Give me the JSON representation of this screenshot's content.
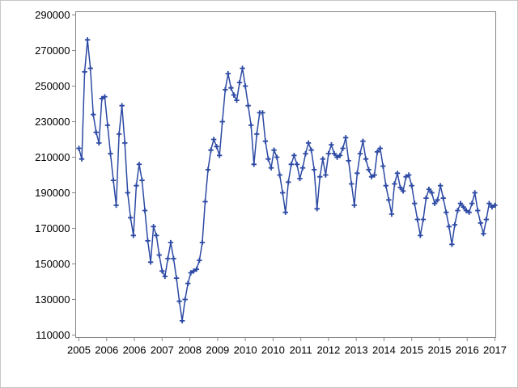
{
  "figure": {
    "background": "#ffffff",
    "border_color": "#c6c6c6",
    "frame_color": "#868686",
    "tick_color": "#8a8a8a",
    "label_color": "#000000"
  },
  "chart_data": {
    "type": "line",
    "title": "",
    "xlabel": "",
    "ylabel": "",
    "grid": false,
    "legend": "none",
    "marker": "plus",
    "line_color": "#2c49a4",
    "ylim": [
      110000,
      290000
    ],
    "y_tick_values": [
      290000,
      270000,
      250000,
      230000,
      210000,
      190000,
      170000,
      150000,
      130000,
      110000
    ],
    "y_tick_labels": [
      "290000",
      "270000",
      "250000",
      "230000",
      "210000",
      "190000",
      "170000",
      "150000",
      "130000",
      "110000"
    ],
    "x_tick_labels": [
      "2005",
      "2006",
      "2006",
      "2007",
      "2008",
      "2009",
      "2010",
      "2010",
      "2011",
      "2012",
      "2013",
      "2014",
      "2015",
      "2015",
      "2016",
      "2017"
    ],
    "x_start_label": "2005",
    "x_end_label": "2017",
    "frequency": "monthly",
    "series": [
      {
        "name": "series1",
        "values": [
          215000,
          209000,
          258000,
          276000,
          260000,
          234000,
          224000,
          218000,
          243000,
          244000,
          228000,
          212000,
          197000,
          183000,
          223000,
          239000,
          218000,
          190000,
          176000,
          166000,
          194000,
          206000,
          197000,
          180000,
          163000,
          151000,
          171000,
          166000,
          155000,
          146000,
          143000,
          153000,
          162000,
          153000,
          142000,
          129000,
          118000,
          130000,
          139000,
          145000,
          146000,
          147000,
          152000,
          162000,
          185000,
          203000,
          214000,
          220000,
          216000,
          211000,
          230000,
          248000,
          257000,
          249000,
          245000,
          242000,
          252000,
          260000,
          250000,
          239000,
          228000,
          206000,
          223000,
          235000,
          235000,
          219000,
          209000,
          204000,
          214000,
          210000,
          200000,
          190000,
          179000,
          196000,
          206000,
          211000,
          206000,
          198000,
          204000,
          212000,
          218000,
          214000,
          203000,
          181000,
          199000,
          209000,
          200000,
          212000,
          217000,
          212000,
          210000,
          211000,
          215000,
          221000,
          208000,
          195000,
          183000,
          201000,
          212000,
          219000,
          209000,
          203000,
          199000,
          200000,
          213000,
          215000,
          205000,
          194000,
          186000,
          178000,
          195000,
          201000,
          193000,
          191000,
          199000,
          200000,
          194000,
          184000,
          175000,
          166000,
          175000,
          187000,
          192000,
          190000,
          184000,
          186000,
          194000,
          187000,
          179000,
          171000,
          161000,
          172000,
          180000,
          184000,
          182000,
          180000,
          179000,
          184000,
          190000,
          180000,
          173000,
          167000,
          175000,
          184000,
          182000,
          183000
        ]
      }
    ]
  }
}
